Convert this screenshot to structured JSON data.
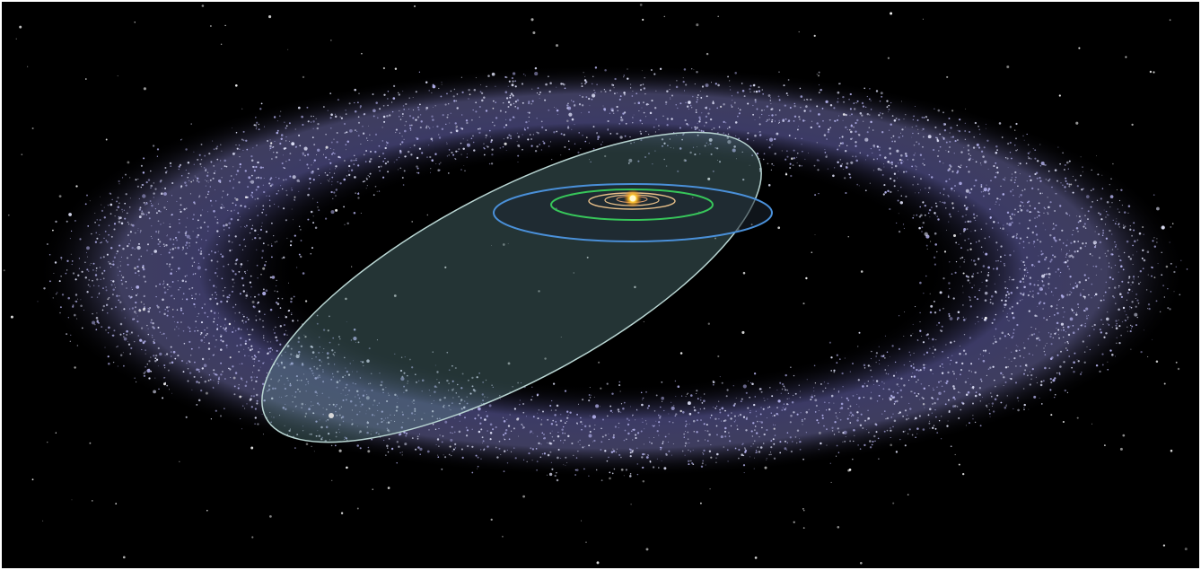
{
  "scene": {
    "subject": "kuiper-belt-illustration",
    "colors": {
      "background": "#000000",
      "belt_haze": "#7a78c8",
      "belt_particles": "#e6e8ff",
      "sun": "#ffcc33",
      "inclined_orbit_fill": "#5f8a8c",
      "inclined_orbit_edge": "#b9d6d3",
      "outer_orbit": "#4a90d9",
      "green_orbit": "#37c65a",
      "inner_orbits": "#e8c089"
    },
    "icons": [
      "sun-icon",
      "planet-icon"
    ]
  }
}
